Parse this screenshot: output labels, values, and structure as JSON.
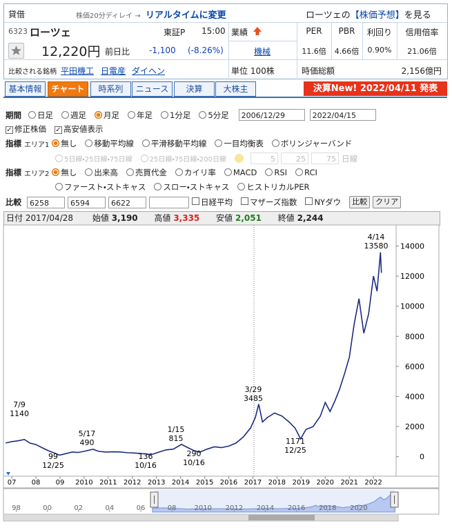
{
  "header": {
    "margin_badge": "貸借",
    "delay_note": "株価20分ディレイ →",
    "realtime_link": "リアルタイムに変更",
    "forecast_prefix": "ローツェの",
    "forecast_link": "【株価予想】",
    "forecast_suffix": "を見る"
  },
  "quote": {
    "code": "6323",
    "name": "ローツェ",
    "market": "東証P",
    "time": "15:00",
    "price": "12,220円",
    "change_label": "前日比",
    "change": "-1,100",
    "change_pct": "(-8.26%)",
    "earnings_label": "業績",
    "sector": "機械",
    "unit": "単位 100株",
    "compare_label": "比較される銘柄",
    "peers": [
      "平田機工",
      "日電産",
      "ダイヘン"
    ]
  },
  "metrics": {
    "headers": [
      "PER",
      "PBR",
      "利回り",
      "信用倍率"
    ],
    "values": [
      "11.6倍",
      "4.66倍",
      "0.90%",
      "21.06倍"
    ],
    "market_cap_label": "時価総額",
    "market_cap": "2,156億円"
  },
  "tabs": [
    "基本情報",
    "チャート",
    "時系列",
    "ニュース",
    "決算",
    "大株主"
  ],
  "active_tab": 1,
  "announcement": "決算New! 2022/04/11 発表",
  "controls": {
    "period": {
      "label": "期間",
      "options": [
        "日足",
        "週足",
        "月足",
        "年足",
        "1分足",
        "5分足"
      ],
      "selected": 2,
      "from": "2006/12/29",
      "to": "2022/04/15"
    },
    "checkboxes": [
      "修正株価",
      "高安値表示"
    ],
    "area1": {
      "label": "指標",
      "area": "エリア1",
      "options": [
        "無し",
        "移動平均線",
        "平滑移動平均線",
        "一目均衡表",
        "ボリンジャーバンド"
      ],
      "selected": 0,
      "sub_options": [
        "5日線・25日線・75日線",
        "25日線・75日線・200日線"
      ],
      "inputs": [
        "5",
        "25",
        "75"
      ],
      "unit": "日線"
    },
    "area2": {
      "label": "指標",
      "area": "エリア2",
      "options": [
        "無し",
        "出来高",
        "売買代金",
        "カイリ率",
        "MACD",
        "RSI",
        "RCI"
      ],
      "options2": [
        "ファースト・ストキャス",
        "スロー・ストキャス",
        "ヒストリカルPER"
      ],
      "selected": 0
    },
    "compare": {
      "label": "比較",
      "codes": [
        "6258",
        "6594",
        "6622"
      ],
      "indices": [
        "日経平均",
        "マザーズ指数",
        "NYダウ"
      ],
      "buttons": [
        "比較",
        "クリア"
      ]
    }
  },
  "chart_info": {
    "date_label": "日付",
    "date": "2017/04/28",
    "open_label": "始値",
    "open": "3,190",
    "high_label": "高値",
    "high": "3,335",
    "low_label": "安値",
    "low": "2,051",
    "close_label": "終値",
    "close": "2,244"
  },
  "chart_data": {
    "type": "line",
    "x": [
      2006.75,
      2007.0,
      2007.25,
      2007.52,
      2007.75,
      2008.0,
      2008.25,
      2008.5,
      2008.75,
      2008.98,
      2009.25,
      2009.5,
      2009.75,
      2010.0,
      2010.37,
      2010.6,
      2010.9,
      2011.2,
      2011.5,
      2011.8,
      2012.1,
      2012.4,
      2012.79,
      2013.1,
      2013.4,
      2013.7,
      2014.04,
      2014.3,
      2014.55,
      2014.79,
      2015.1,
      2015.4,
      2015.7,
      2016.0,
      2016.3,
      2016.6,
      2016.9,
      2017.1,
      2017.24,
      2017.4,
      2017.6,
      2017.9,
      2018.2,
      2018.5,
      2018.75,
      2018.98,
      2019.2,
      2019.5,
      2019.8,
      2020.0,
      2020.2,
      2020.4,
      2020.6,
      2020.8,
      2021.0,
      2021.2,
      2021.4,
      2021.6,
      2021.8,
      2022.0,
      2022.15,
      2022.29,
      2022.33
    ],
    "series": [
      {
        "name": "ローツェ",
        "color": "#1a2a80",
        "values": [
          900,
          1000,
          1050,
          1140,
          900,
          800,
          600,
          400,
          250,
          99,
          200,
          300,
          280,
          350,
          490,
          350,
          300,
          320,
          310,
          260,
          240,
          200,
          136,
          300,
          450,
          500,
          815,
          600,
          400,
          290,
          500,
          650,
          600,
          700,
          900,
          1300,
          1900,
          2600,
          3485,
          2300,
          2600,
          2900,
          2700,
          2300,
          1900,
          1171,
          1800,
          2000,
          2700,
          3600,
          3000,
          3700,
          4500,
          5500,
          6600,
          8800,
          10500,
          8200,
          9500,
          12000,
          11000,
          13580,
          12220
        ]
      }
    ],
    "xlim": [
      2006.74,
      2022.94
    ],
    "xticks": [
      {
        "value": 2007,
        "label": "07"
      },
      {
        "value": 2008,
        "label": "08"
      },
      {
        "value": 2009,
        "label": "09"
      },
      2010,
      2011,
      2012,
      2013,
      2014,
      2015,
      2016,
      2017,
      2018,
      2019,
      2020,
      2021,
      2022
    ],
    "ylim": [
      -1300,
      15400
    ],
    "yticks": [
      0,
      2000,
      4000,
      6000,
      8000,
      10000,
      12000,
      14000
    ],
    "annotations": [
      {
        "date": "7/9",
        "value": 1140
      },
      {
        "date": "12/25",
        "value": 99
      },
      {
        "date": "5/17",
        "value": 490
      },
      {
        "date": "10/16",
        "value": 136
      },
      {
        "date": "1/15",
        "value": 815
      },
      {
        "date": "10/16",
        "value": 290
      },
      {
        "date": "3/29",
        "value": 3485
      },
      {
        "date": "12/25",
        "value": 1171
      },
      {
        "date": "4/14",
        "value": 13580
      }
    ],
    "navigator": {
      "xlim": [
        1997.4,
        2022.4
      ],
      "xticks": [
        {
          "value": 1998,
          "label": "98"
        },
        {
          "value": 2000,
          "label": "00"
        },
        {
          "value": 2002,
          "label": "02"
        },
        {
          "value": 2004,
          "label": "04"
        },
        {
          "value": 2006,
          "label": "06"
        },
        {
          "value": 2008,
          "label": "08"
        },
        2010,
        2012,
        2014,
        2016,
        2018,
        2020
      ]
    }
  }
}
